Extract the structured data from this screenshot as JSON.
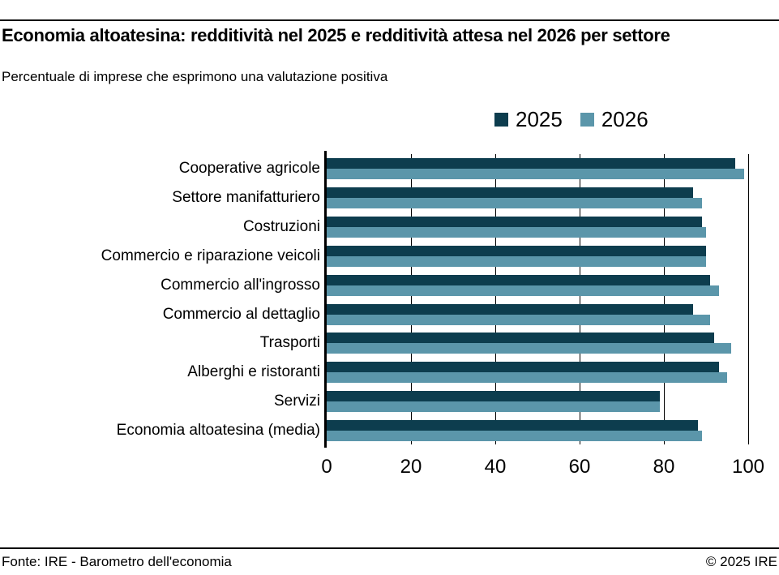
{
  "header": {
    "title": "Economia altoatesina: redditività nel 2025 e redditività attesa nel 2026 per settore",
    "subtitle": "Percentuale di imprese che esprimono una valutazione positiva"
  },
  "colors": {
    "series_2025": "#0d3d4e",
    "series_2026": "#5b96aa",
    "axis": "#000000"
  },
  "chart_data": {
    "type": "bar",
    "orientation": "horizontal",
    "title": "Economia altoatesina: redditività nel 2025 e redditività attesa nel 2026 per settore",
    "subtitle": "Percentuale di imprese che esprimono una valutazione positiva",
    "categories": [
      "Cooperative agricole",
      "Settore manifatturiero",
      "Costruzioni",
      "Commercio e riparazione veicoli",
      "Commercio all'ingrosso",
      "Commercio al dettaglio",
      "Trasporti",
      "Alberghi e ristoranti",
      "Servizi",
      "Economia altoatesina (media)"
    ],
    "series": [
      {
        "name": "2025",
        "color": "#0d3d4e",
        "values": [
          97,
          87,
          89,
          90,
          91,
          87,
          92,
          93,
          79,
          88
        ]
      },
      {
        "name": "2026",
        "color": "#5b96aa",
        "values": [
          99,
          89,
          90,
          90,
          93,
          91,
          96,
          95,
          79,
          89
        ]
      }
    ],
    "xlim": [
      0,
      100
    ],
    "xticks": [
      0,
      20,
      40,
      60,
      80,
      100
    ],
    "grid": "vertical",
    "legend_position": "top"
  },
  "footer": {
    "source": "Fonte: IRE - Barometro dell'economia",
    "copyright": "© 2025 IRE"
  }
}
